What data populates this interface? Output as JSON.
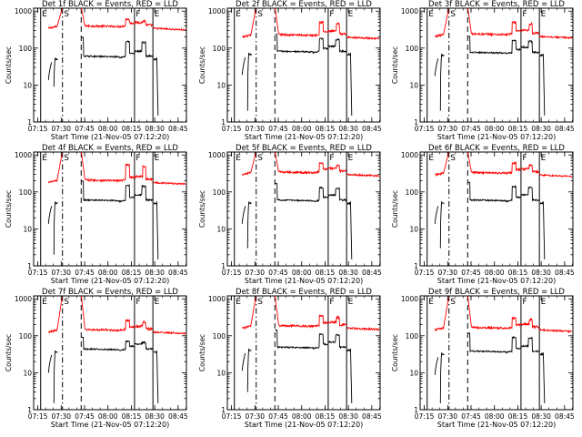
{
  "figure": {
    "panels": [
      {
        "title": "Det 1f BLACK = Events, RED = LLD",
        "red_base": 380,
        "red_peak": 600,
        "black_base": 55,
        "black_peak": 150,
        "black_gap_min": 9,
        "det": 1
      },
      {
        "title": "Det 2f BLACK = Events, RED = LLD",
        "red_base": 220,
        "red_peak": 500,
        "black_base": 75,
        "black_peak": 180,
        "black_gap_min": 2,
        "det": 2
      },
      {
        "title": "Det 3f BLACK = Events, RED = LLD",
        "red_base": 230,
        "red_peak": 500,
        "black_base": 70,
        "black_peak": 160,
        "black_gap_min": 2,
        "det": 3
      },
      {
        "title": "Det 4f BLACK = Events, RED = LLD",
        "red_base": 200,
        "red_peak": 550,
        "black_base": 55,
        "black_peak": 150,
        "black_gap_min": 2,
        "det": 4
      },
      {
        "title": "Det 5f BLACK = Events, RED = LLD",
        "red_base": 330,
        "red_peak": 600,
        "black_base": 55,
        "black_peak": 130,
        "black_gap_min": 3,
        "det": 5
      },
      {
        "title": "Det 6f BLACK = Events, RED = LLD",
        "red_base": 320,
        "red_peak": 600,
        "black_base": 55,
        "black_peak": 140,
        "black_gap_min": 3,
        "det": 6
      },
      {
        "title": "Det 7f BLACK = Events, RED = LLD",
        "red_base": 140,
        "red_peak": 260,
        "black_base": 40,
        "black_peak": 70,
        "black_gap_min": 1.5,
        "det": 7
      },
      {
        "title": "Det 8f BLACK = Events, RED = LLD",
        "red_base": 180,
        "red_peak": 350,
        "black_base": 45,
        "black_peak": 110,
        "black_gap_min": 3,
        "det": 8
      },
      {
        "title": "Det 9f BLACK = Events, RED = LLD",
        "red_base": 160,
        "red_peak": 300,
        "black_base": 35,
        "black_peak": 90,
        "black_gap_min": 1.5,
        "det": 9
      }
    ]
  },
  "chart_data": {
    "type": "line",
    "grid": "3x3",
    "title_template": "Det Nf BLACK = Events, RED = LLD",
    "xlabel": "Start Time (21-Nov-05 07:12:20)",
    "ylabel": "Counts/sec",
    "xlim_minutes_from_0712_20": [
      0,
      98
    ],
    "x_tick_labels": [
      "07:15",
      "07:30",
      "07:45",
      "08:00",
      "08:15",
      "08:30",
      "08:45"
    ],
    "x_tick_minutes": [
      2.67,
      17.67,
      32.67,
      47.67,
      62.67,
      77.67,
      92.67
    ],
    "yscale": "log",
    "ylim": [
      1,
      1200
    ],
    "y_tick_labels": [
      "1",
      "10",
      "100",
      "1000"
    ],
    "y_tick_values": [
      1,
      10,
      100,
      1000
    ],
    "markers": [
      {
        "minute": 4.5,
        "style": "solid",
        "label": "E"
      },
      {
        "minute": 18.5,
        "style": "dash-dot",
        "label": "S"
      },
      {
        "minute": 30.5,
        "style": "dashed",
        "label": ""
      },
      {
        "minute": 64.7,
        "style": "solid",
        "label": "F"
      },
      {
        "minute": 76.5,
        "style": "solid",
        "label": "E"
      }
    ],
    "series": [
      {
        "name": "Events",
        "color": "#000000"
      },
      {
        "name": "LLD",
        "color": "#ff0000"
      }
    ]
  }
}
